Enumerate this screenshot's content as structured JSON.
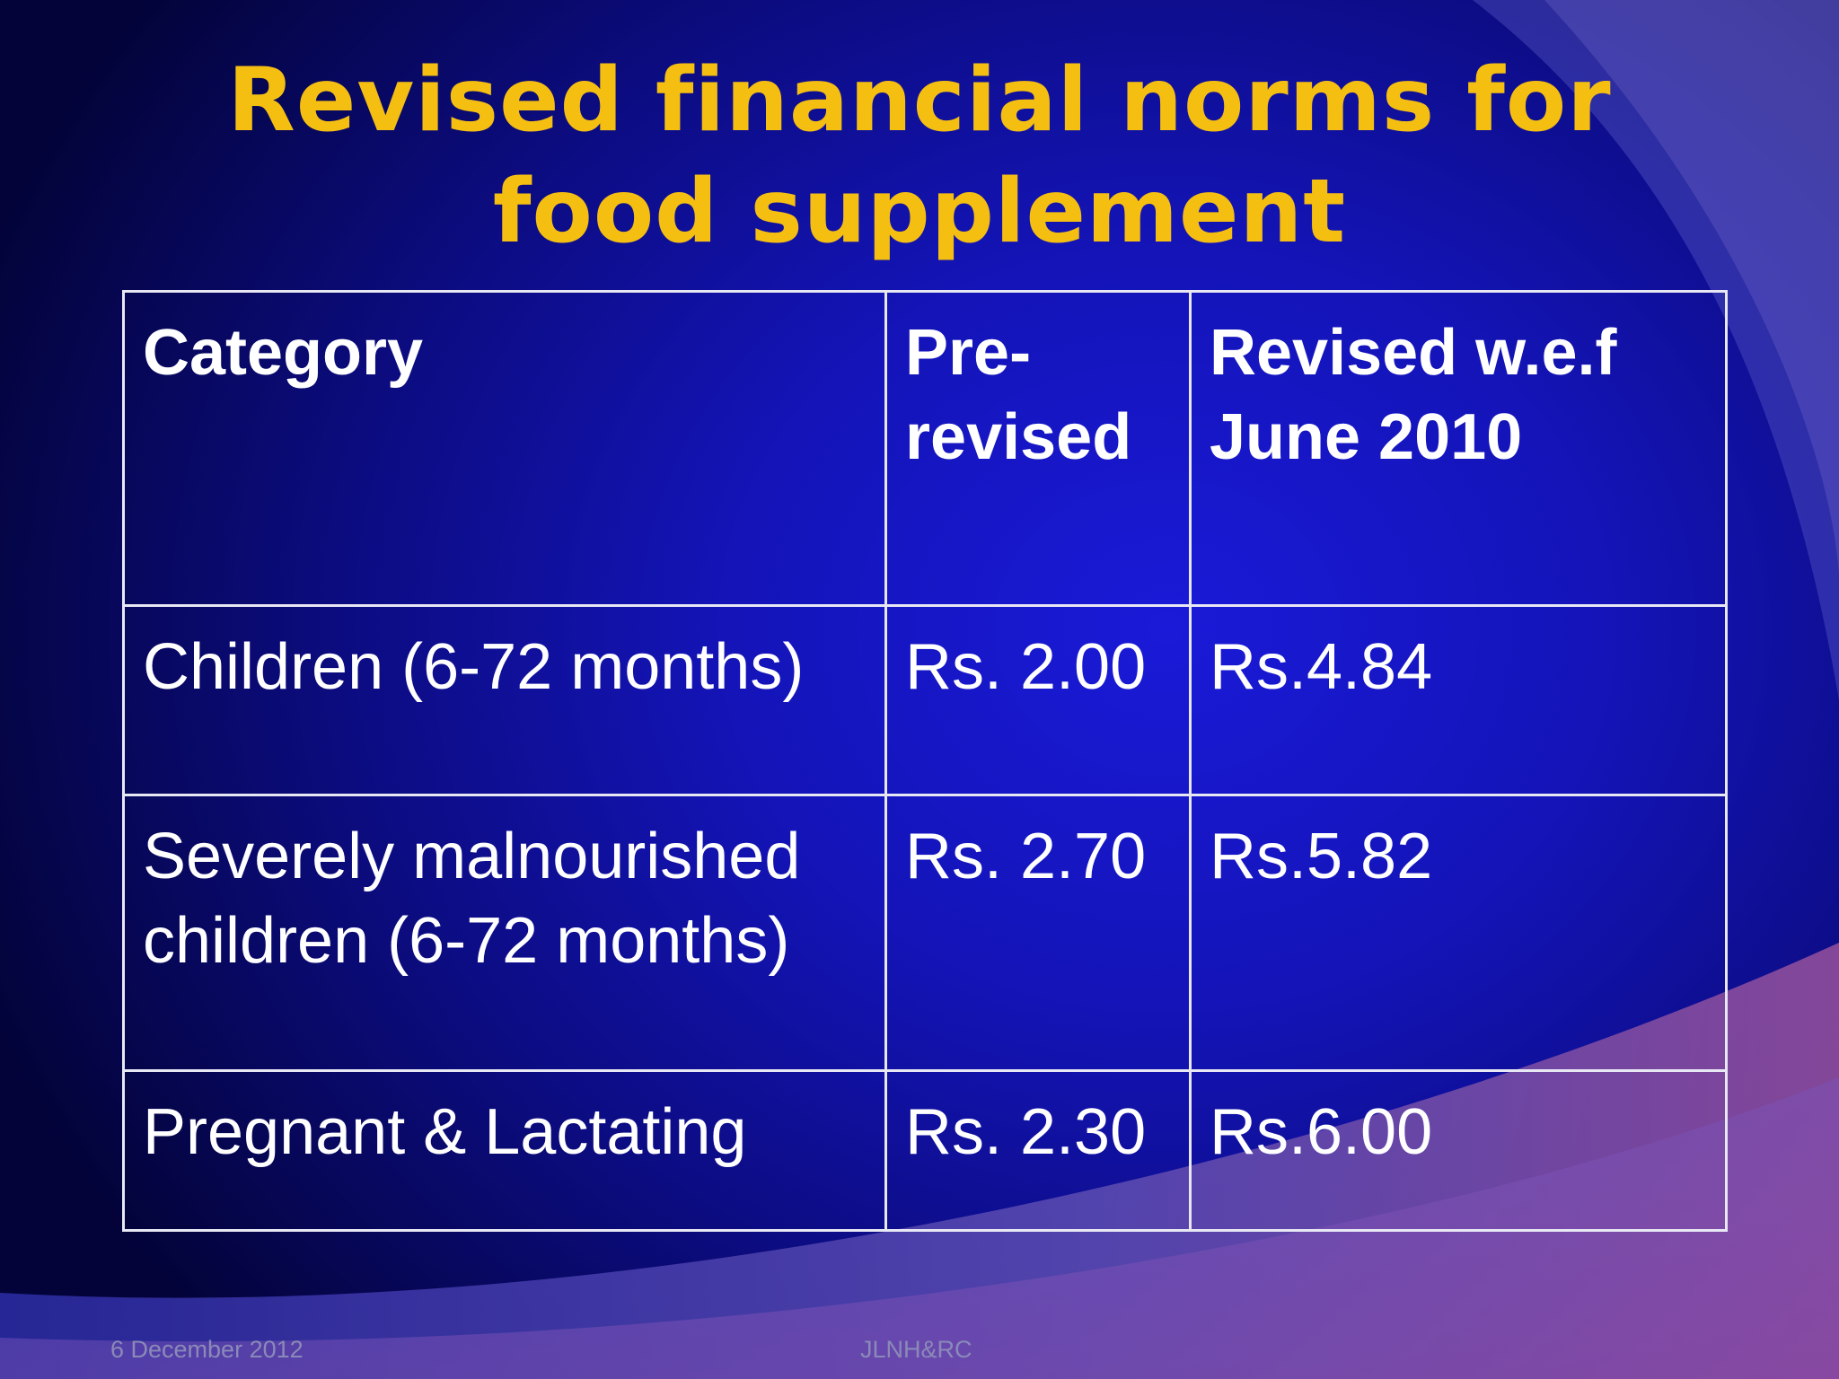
{
  "slide": {
    "title": "Revised financial norms for food supplement",
    "table": {
      "headers": [
        "Category",
        "Pre-revised",
        "Revised w.e.f June 2010"
      ],
      "rows": [
        {
          "category": "Children (6-72 months)",
          "pre_revised": "Rs. 2.00",
          "revised": "Rs.4.84"
        },
        {
          "category": "Severely malnourished children (6-72 months)",
          "pre_revised": "Rs. 2.70",
          "revised": "Rs.5.82"
        },
        {
          "category": "Pregnant & Lactating",
          "pre_revised": "Rs. 2.30",
          "revised": "Rs.6.00"
        }
      ]
    },
    "footer": {
      "date": "6 December 2012",
      "center": "JLNH&RC"
    }
  },
  "colors": {
    "title": "#f5bf12",
    "text": "#ffffff",
    "background": "#1414b8",
    "footer": "#8a8ab8"
  }
}
